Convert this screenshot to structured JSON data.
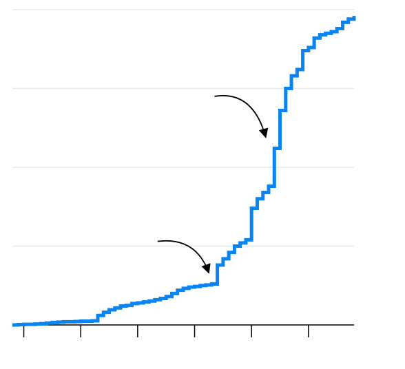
{
  "chart_data": {
    "type": "line",
    "step": true,
    "title": "",
    "xlabel": "",
    "ylabel": "",
    "xlim": [
      0,
      60
    ],
    "ylim": [
      0,
      100
    ],
    "x_ticks": [
      2,
      12,
      22,
      32,
      42,
      52
    ],
    "y_gridlines": [
      25,
      50,
      75,
      100
    ],
    "grid": true,
    "legend": "none",
    "colors": {
      "line": "#0a84f0",
      "grid": "#e8e8e8",
      "axis": "#000000",
      "annotation": "#000000"
    },
    "series": [
      {
        "x": [
          0,
          1,
          2,
          3,
          4,
          5,
          6,
          7,
          8,
          9,
          10,
          11,
          12,
          13,
          14,
          15,
          16,
          17,
          18,
          19,
          20,
          21,
          22,
          23,
          24,
          25,
          26,
          27,
          28,
          29,
          30,
          31,
          32,
          33,
          34,
          35,
          36,
          37,
          38,
          39,
          40,
          41,
          42,
          43,
          44,
          45,
          46,
          47,
          48,
          49,
          50,
          51,
          52,
          53,
          54,
          55,
          56,
          57,
          58,
          59,
          60
        ],
        "values": [
          0,
          0.1,
          0.2,
          0.2,
          0.3,
          0.4,
          0.6,
          0.8,
          0.9,
          1.0,
          1.0,
          1.1,
          1.2,
          1.2,
          1.3,
          3.0,
          4.0,
          4.8,
          5.4,
          6.0,
          6.2,
          6.8,
          7.0,
          7.3,
          7.6,
          8.0,
          8.4,
          9.0,
          10.0,
          11.0,
          11.6,
          12.0,
          12.2,
          12.5,
          12.7,
          13.0,
          19.0,
          21.0,
          23.0,
          25.0,
          26.0,
          27.0,
          37.0,
          40.0,
          42.0,
          44.0,
          56.0,
          68.0,
          75.0,
          79.0,
          81.0,
          87.0,
          88.0,
          91.0,
          92.0,
          92.5,
          93.0,
          94.0,
          96.0,
          97.0,
          98.0
        ]
      }
    ],
    "annotations": [
      {
        "type": "arrow",
        "from": [
          25.5,
          26.5
        ],
        "to": [
          34.5,
          16.5
        ]
      },
      {
        "type": "arrow",
        "from": [
          35.5,
          72.5
        ],
        "to": [
          44.5,
          59.5
        ]
      }
    ]
  }
}
